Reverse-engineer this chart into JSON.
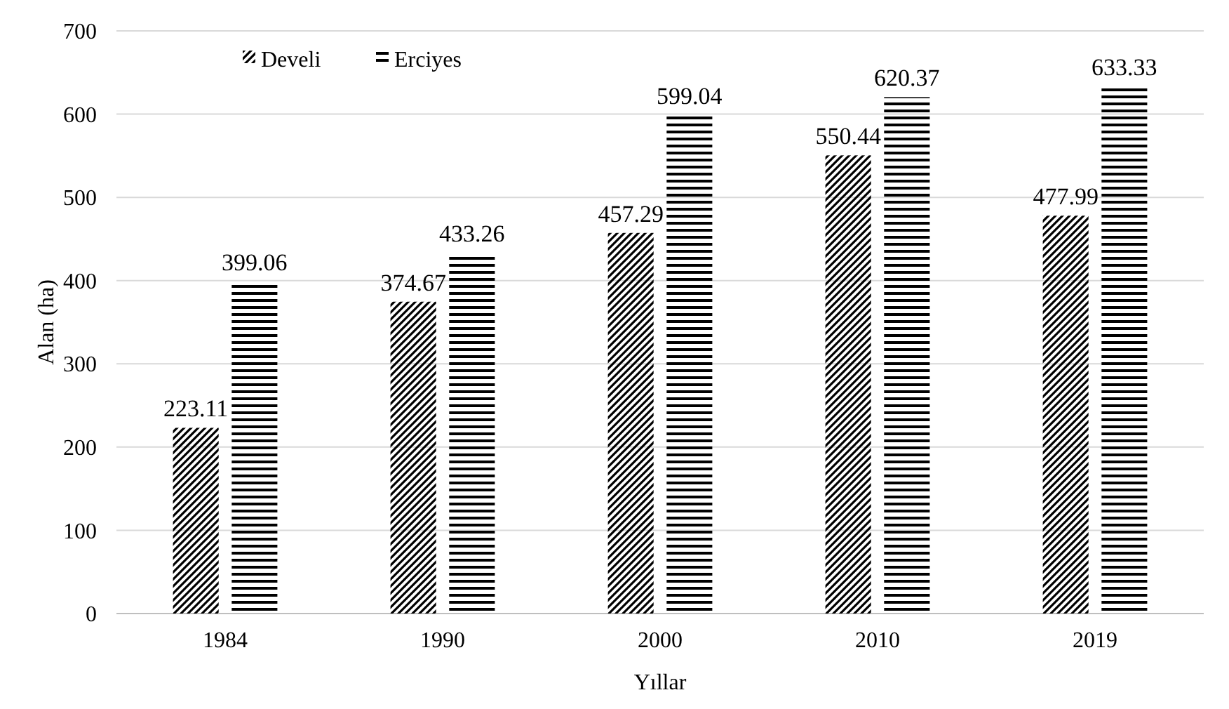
{
  "chart_data": {
    "type": "bar",
    "xlabel": "Yıllar",
    "ylabel": "Alan (ha)",
    "categories": [
      "1984",
      "1990",
      "2000",
      "2010",
      "2019"
    ],
    "series": [
      {
        "name": "Develi",
        "color": "#000000",
        "values": [
          223.11,
          374.67,
          457.29,
          550.44,
          477.99
        ]
      },
      {
        "name": "Erciyes",
        "color": "#000000",
        "values": [
          399.06,
          433.26,
          599.04,
          620.37,
          633.33
        ]
      }
    ],
    "ylim": [
      0,
      700
    ],
    "yticks": [
      0,
      100,
      200,
      300,
      400,
      500,
      600,
      700
    ],
    "grid": "y",
    "legend": "top left",
    "data_labels": true
  }
}
